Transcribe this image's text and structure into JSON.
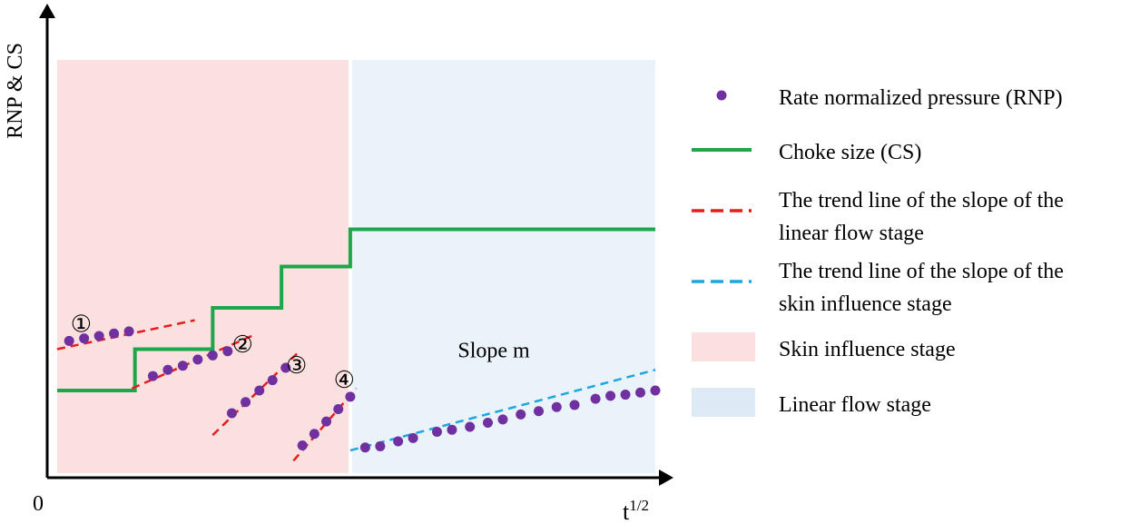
{
  "chart_data": {
    "type": "line",
    "title": "",
    "xlabel_base": "t",
    "xlabel_exp": "1/2",
    "ylabel": "RNP & CS",
    "origin_label": "0",
    "x_range": [
      0,
      10
    ],
    "y_range": [
      0,
      10
    ],
    "grid": false,
    "legend_position": "right",
    "regions": [
      {
        "name": "Skin influence stage",
        "x": [
          0,
          4.9
        ],
        "color": "#fbe0e0"
      },
      {
        "name": "Linear flow stage",
        "x": [
          4.9,
          10
        ],
        "color": "#eaf2fa"
      }
    ],
    "annotation_slope": "Slope m",
    "annotation_slope_at": [
      7.3,
      2.8
    ],
    "choke_size": {
      "name": "Choke size (CS)",
      "color": "#1ea64a",
      "steps": [
        {
          "x": [
            0,
            1.3
          ],
          "y": 2.0
        },
        {
          "x": [
            1.3,
            2.6
          ],
          "y": 3.0
        },
        {
          "x": [
            2.6,
            3.75
          ],
          "y": 4.0
        },
        {
          "x": [
            3.75,
            4.9
          ],
          "y": 5.0
        },
        {
          "x": [
            4.9,
            10
          ],
          "y": 5.9
        }
      ]
    },
    "rnp_points": {
      "name": "Rate normalized pressure (RNP)",
      "color": "#7030a0",
      "segments": [
        [
          [
            0.2,
            3.2
          ],
          [
            0.45,
            3.26
          ],
          [
            0.7,
            3.32
          ],
          [
            0.95,
            3.38
          ],
          [
            1.2,
            3.43
          ]
        ],
        [
          [
            1.6,
            2.35
          ],
          [
            1.85,
            2.5
          ],
          [
            2.1,
            2.6
          ],
          [
            2.35,
            2.75
          ],
          [
            2.6,
            2.85
          ],
          [
            2.85,
            2.95
          ]
        ],
        [
          [
            2.92,
            1.45
          ],
          [
            3.15,
            1.72
          ],
          [
            3.38,
            2.0
          ],
          [
            3.6,
            2.25
          ],
          [
            3.82,
            2.55
          ]
        ],
        [
          [
            4.1,
            0.67
          ],
          [
            4.3,
            0.95
          ],
          [
            4.5,
            1.25
          ],
          [
            4.7,
            1.55
          ],
          [
            4.9,
            1.85
          ]
        ],
        [
          [
            5.15,
            0.62
          ],
          [
            5.4,
            0.65
          ],
          [
            5.7,
            0.77
          ],
          [
            5.95,
            0.85
          ],
          [
            6.35,
            1.0
          ],
          [
            6.6,
            1.05
          ],
          [
            6.9,
            1.12
          ],
          [
            7.2,
            1.22
          ],
          [
            7.45,
            1.3
          ],
          [
            7.75,
            1.42
          ],
          [
            8.05,
            1.5
          ],
          [
            8.35,
            1.6
          ],
          [
            8.65,
            1.65
          ],
          [
            9.0,
            1.8
          ],
          [
            9.25,
            1.87
          ],
          [
            9.5,
            1.9
          ],
          [
            9.75,
            1.95
          ],
          [
            10.0,
            2.0
          ]
        ]
      ]
    },
    "trend_linear_flow": {
      "name": "The trend line of the slope of the linear flow stage",
      "color": "#e81c1c",
      "lines": [
        {
          "from": [
            0,
            3.0
          ],
          "to": [
            2.3,
            3.7
          ]
        },
        {
          "from": [
            1.25,
            2.05
          ],
          "to": [
            3.3,
            3.35
          ]
        },
        {
          "from": [
            2.6,
            0.92
          ],
          "to": [
            4.05,
            2.95
          ]
        },
        {
          "from": [
            3.95,
            0.3
          ],
          "to": [
            5.0,
            2.05
          ]
        }
      ]
    },
    "trend_skin_influence": {
      "name": "The trend line of the slope of the skin influence stage",
      "color": "#1ea6e0",
      "lines": [
        {
          "from": [
            4.9,
            0.55
          ],
          "to": [
            10.0,
            2.5
          ]
        }
      ]
    },
    "markers": [
      {
        "label": "①",
        "at": [
          0.4,
          3.55
        ]
      },
      {
        "label": "②",
        "at": [
          3.1,
          3.05
        ]
      },
      {
        "label": "③",
        "at": [
          4.0,
          2.55
        ]
      },
      {
        "label": "④",
        "at": [
          4.8,
          2.2
        ]
      }
    ],
    "legend": [
      {
        "key": "rnp",
        "lines": [
          "Rate normalized pressure (RNP)"
        ]
      },
      {
        "key": "cs",
        "lines": [
          "Choke size (CS)"
        ]
      },
      {
        "key": "trend_red",
        "lines": [
          "The trend line of the slope of the",
          "linear flow stage"
        ]
      },
      {
        "key": "trend_blue",
        "lines": [
          "The trend line of the slope of the",
          "skin influence stage"
        ]
      },
      {
        "key": "skin_region",
        "lines": [
          "Skin influence stage"
        ]
      },
      {
        "key": "linear_region",
        "lines": [
          "Linear flow stage"
        ]
      }
    ]
  }
}
